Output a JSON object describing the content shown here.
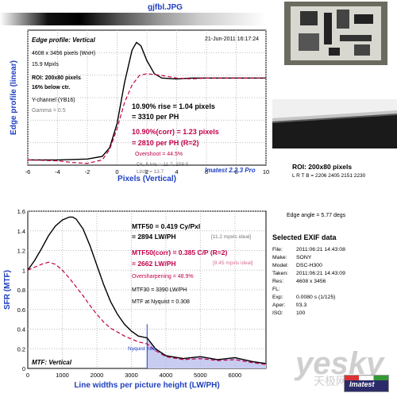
{
  "file_title": "gjfbl.JPG",
  "top_chart": {
    "title": "Edge profile: Vertical",
    "date": "21-Jun-2011 16:17:24",
    "size_line": "4608 x 3456 pixels (WxH)",
    "mpxls": "15.9 Mpxls",
    "roi": "ROI: 200x80 pixels",
    "roi_pct": "16% below ctr.",
    "channel": "Y-channel  (YB16)",
    "gamma": "Gamma = 0.5",
    "rise_line": "10.90% rise = 1.04 pixels",
    "rise_ph": "= 3310 per PH",
    "corr_line": "10.90%(corr) = 1.23 pixels",
    "corr_ph": "= 2810 per PH   (R=2)",
    "overshoot": "Overshoot = 44.5%",
    "dk_lt": "Dk, lt lvls = 11.7, 159.5",
    "ltdk": "Lt/dk = 13.7",
    "imatest_ver": "Imatest 2.2.3 Pro",
    "xlabel": "Pixels (Vertical)",
    "ylabel": "Edge profile (linear)",
    "x_ticks": [
      "-6",
      "-4",
      "-2",
      "0",
      "2",
      "4",
      "6",
      "8",
      "10"
    ]
  },
  "bottom_chart": {
    "title": "MTF: Vertical",
    "mtf50": "MTF50 = 0.419 Cy/Pxl",
    "mtf50_lw": "= 2894 LW/PH",
    "mtf50_ideal": "[11.2 mpxls ideal]",
    "mtf50c": "MTF50(corr) = 0.385 C/P  (R=2)",
    "mtf50c_lw": "= 2662 LW/PH",
    "mtf50c_ideal": "[9.45 mpxls ideal]",
    "oversharp": "Oversharpening = 48.9%",
    "mtf30": "MTF30 = 3390 LW/PH",
    "nyq": "MTF at Nyquist = 0.308",
    "nyq_label": "Nyquist freq.",
    "xlabel": "Line widths per picture height (LW/PH)",
    "ylabel": "SFR (MTF)",
    "x_ticks": [
      "0",
      "1000",
      "2000",
      "3000",
      "4000",
      "5000",
      "6000"
    ],
    "y_ticks": [
      "0",
      "0.2",
      "0.4",
      "0.6",
      "0.8",
      "1",
      "1.2",
      "1.4",
      "1.6"
    ]
  },
  "roi_info": {
    "roi": "ROI: 200x80 pixels",
    "lrtb": "L R T B = 2206 2405  2151 2230",
    "edge_angle": "Edge angle = 5.77 degs"
  },
  "exif": {
    "title": "Selected EXIF data",
    "rows": [
      [
        "File:",
        "2011:06:21 14:43:08"
      ],
      [
        "Make:",
        "SONY"
      ],
      [
        "Model:",
        "DSC-H300"
      ],
      [
        "Taken:",
        "2011:06:21 14:43:09"
      ],
      [
        "Res:",
        "4608 x 3456"
      ],
      [
        "FL:",
        ""
      ],
      [
        "Exp:",
        "0.0080 s  (1/125)"
      ],
      [
        "Aper:",
        "f/3.3"
      ],
      [
        "ISO:",
        "100"
      ]
    ]
  },
  "watermark": {
    "brand": "yesky",
    "brand_cn": "天极网",
    "logo_text": "Imatest"
  },
  "colors": {
    "measured": "#000000",
    "corrected": "#c0004a",
    "shade": "#c8ccf0"
  },
  "chart_data": [
    {
      "type": "line",
      "title": "Edge profile: Vertical",
      "xlabel": "Pixels (Vertical)",
      "ylabel": "Edge profile (linear)",
      "xlim": [
        -6,
        10
      ],
      "ylim": [
        0,
        1.55
      ],
      "grid": true,
      "series": [
        {
          "x": [
            -6,
            -4,
            -2,
            -1,
            -0.5,
            0,
            0.5,
            1,
            1.3,
            1.6,
            2,
            2.5,
            3,
            4,
            5,
            6,
            7,
            8,
            10
          ],
          "y": [
            0.06,
            0.06,
            0.07,
            0.1,
            0.2,
            0.48,
            0.95,
            1.32,
            1.41,
            1.37,
            1.2,
            1.05,
            1.0,
            0.99,
            1.0,
            1.0,
            1.0,
            1.0,
            1.0
          ]
        },
        {
          "x": [
            -6,
            -4,
            -3,
            -2,
            -1,
            -0.5,
            0,
            0.5,
            1,
            1.5,
            2,
            3,
            4,
            5,
            6,
            8,
            10
          ],
          "y": [
            0.06,
            0.05,
            0.03,
            0.02,
            0.06,
            0.18,
            0.42,
            0.72,
            0.92,
            1.03,
            1.05,
            1.03,
            1.0,
            0.99,
            1.0,
            1.0,
            1.0
          ]
        }
      ]
    },
    {
      "type": "line",
      "title": "MTF: Vertical",
      "xlabel": "Line widths per picture height (LW/PH)",
      "ylabel": "SFR (MTF)",
      "xlim": [
        0,
        6900
      ],
      "ylim": [
        0,
        1.6
      ],
      "grid": true,
      "series": [
        {
          "x": [
            0,
            200,
            400,
            600,
            800,
            1000,
            1200,
            1300,
            1400,
            1600,
            1800,
            2000,
            2200,
            2400,
            2600,
            2800,
            3000,
            3200,
            3456,
            3700,
            4000,
            4500,
            5000,
            5500,
            6000,
            6500,
            6900
          ],
          "y": [
            1.0,
            1.1,
            1.22,
            1.35,
            1.45,
            1.51,
            1.54,
            1.54,
            1.52,
            1.42,
            1.25,
            1.05,
            0.85,
            0.68,
            0.55,
            0.45,
            0.38,
            0.33,
            0.31,
            0.2,
            0.13,
            0.1,
            0.12,
            0.09,
            0.11,
            0.07,
            0.05
          ]
        },
        {
          "x": [
            0,
            200,
            400,
            600,
            800,
            1000,
            1200,
            1400,
            1600,
            1800,
            2000,
            2200,
            2400,
            2600,
            2800,
            3000,
            3200,
            3456,
            3700,
            4000,
            4500,
            5000,
            5500,
            6000,
            6500,
            6900
          ],
          "y": [
            1.0,
            1.03,
            1.06,
            1.08,
            1.06,
            1.0,
            0.92,
            0.83,
            0.74,
            0.64,
            0.55,
            0.47,
            0.41,
            0.37,
            0.33,
            0.3,
            0.27,
            0.25,
            0.18,
            0.12,
            0.09,
            0.1,
            0.08,
            0.09,
            0.06,
            0.04
          ]
        }
      ],
      "annotations": [
        {
          "text": "Nyquist freq.",
          "x": 3456
        }
      ]
    }
  ]
}
